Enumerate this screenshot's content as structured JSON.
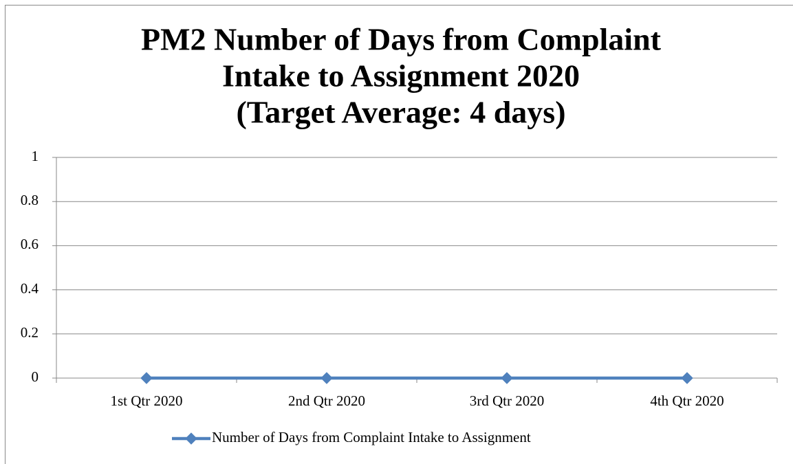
{
  "chart_data": {
    "type": "line",
    "title": [
      "PM2 Number of Days from  Complaint",
      "Intake to Assignment 2020",
      "(Target Average: 4 days)"
    ],
    "categories": [
      "1st Qtr 2020",
      "2nd Qtr 2020",
      "3rd Qtr 2020",
      "4th Qtr 2020"
    ],
    "series": [
      {
        "name": "Number of Days from Complaint Intake to Assignment",
        "color": "#4f81bd",
        "values": [
          0,
          0,
          0,
          0
        ]
      }
    ],
    "ylim": [
      0,
      1
    ],
    "yticks": [
      0,
      0.2,
      0.4,
      0.6,
      0.8,
      1
    ],
    "grid": true,
    "legend": "bottom"
  }
}
